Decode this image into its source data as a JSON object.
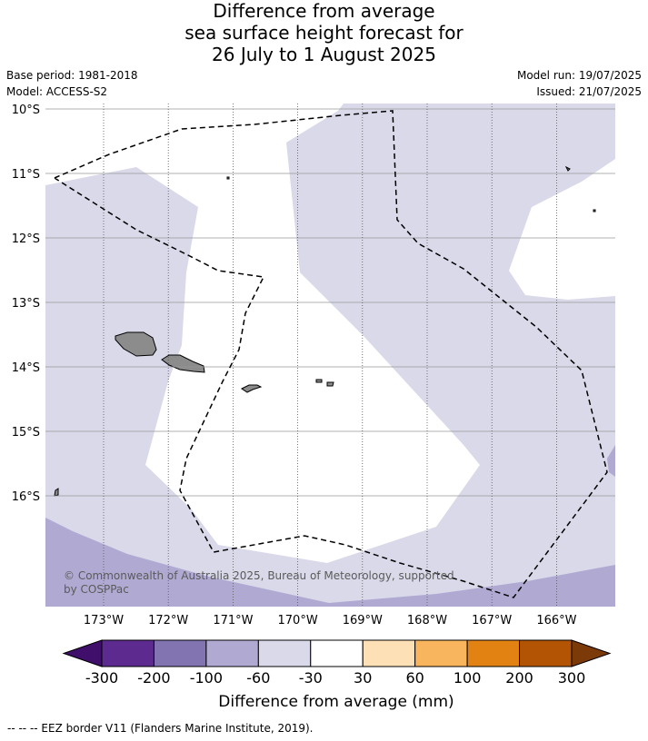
{
  "title": {
    "line1": "Difference from average",
    "line2": "sea surface height forecast for",
    "line3": "26 July to 1 August 2025"
  },
  "meta": {
    "base_period": "Base period: 1981-2018",
    "model": "Model: ACCESS-S2",
    "model_run": "Model run: 19/07/2025",
    "issued": "Issued: 21/07/2025"
  },
  "map": {
    "lat_labels": [
      "10°S",
      "11°S",
      "12°S",
      "13°S",
      "14°S",
      "15°S",
      "16°S"
    ],
    "lon_labels": [
      "173°W",
      "172°W",
      "171°W",
      "170°W",
      "169°W",
      "168°W",
      "167°W",
      "166°W"
    ],
    "lat_range": [
      -10,
      -17.7
    ],
    "lon_range": [
      -173.9,
      -165.1
    ],
    "copyright": [
      "© Commonwealth of Australia 2025, Bureau of Meteorology, supported",
      "by COSPPac"
    ],
    "fill_colors": {
      "land": "#8c8c8c",
      "class_minus30_to_minus60": "#d9d9ea",
      "class_minus60_to_minus100": "#b0aad3",
      "class_minus30_to_30": "#ffffff"
    }
  },
  "legend": {
    "ticks": [
      "-300",
      "-200",
      "-100",
      "-60",
      "-30",
      "30",
      "60",
      "100",
      "200",
      "300"
    ],
    "colors": [
      "#3f0f6b",
      "#5d2a8f",
      "#8273b1",
      "#b0aad3",
      "#d9d9ea",
      "#ffffff",
      "#fde0b6",
      "#f9b55d",
      "#e18213",
      "#b35405",
      "#7c3a09"
    ],
    "title": "Difference from average (mm)"
  },
  "footnote": "--  --  -- EEZ border V11 (Flanders Marine Institute, 2019)."
}
